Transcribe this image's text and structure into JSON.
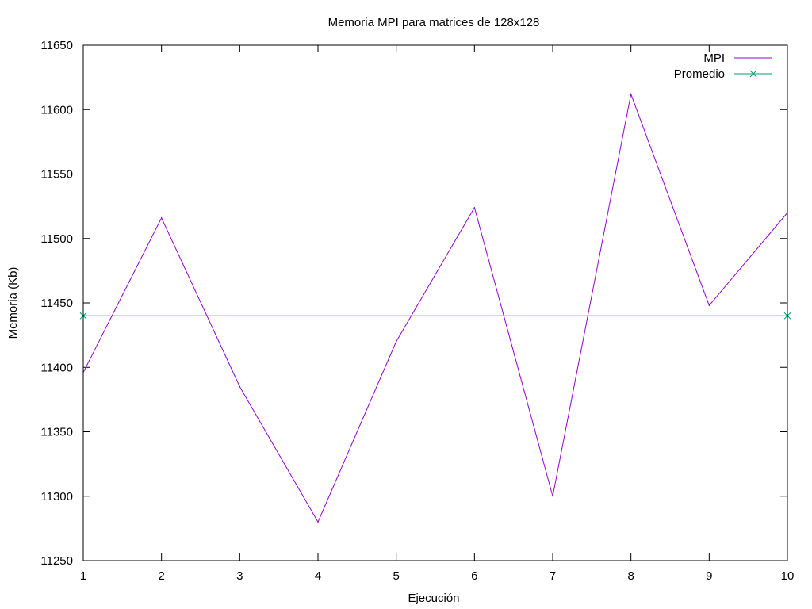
{
  "chart_data": {
    "type": "line",
    "title": "Memoria MPI para matrices de 128x128",
    "xlabel": "Ejecución",
    "ylabel": "Memoria (Kb)",
    "xlim": [
      1,
      10
    ],
    "ylim": [
      11250,
      11650
    ],
    "x_ticks": [
      1,
      2,
      3,
      4,
      5,
      6,
      7,
      8,
      9,
      10
    ],
    "y_ticks": [
      11250,
      11300,
      11350,
      11400,
      11450,
      11500,
      11550,
      11600,
      11650
    ],
    "grid": false,
    "legend_position": "top-right",
    "series": [
      {
        "name": "MPI",
        "color": "#9400d3",
        "marker": "none",
        "x": [
          1,
          2,
          3,
          4,
          5,
          6,
          7,
          8,
          9,
          10
        ],
        "y": [
          11396,
          11516,
          11385,
          11280,
          11420,
          11524,
          11300,
          11612,
          11448,
          11520
        ]
      },
      {
        "name": "Promedio",
        "color": "#009e73",
        "marker": "x",
        "x": [
          1,
          10
        ],
        "y": [
          11440,
          11440
        ]
      }
    ]
  }
}
